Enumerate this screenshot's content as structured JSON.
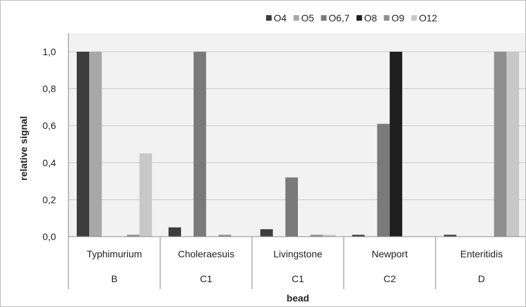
{
  "chart_data": {
    "type": "bar",
    "title": "",
    "xlabel": "bead",
    "ylabel": "relative signal",
    "ylim": [
      0,
      1.0
    ],
    "yticks": [
      "0,0",
      "0,2",
      "0,4",
      "0,6",
      "0,8",
      "1,0"
    ],
    "ytick_values": [
      0,
      0.2,
      0.4,
      0.6,
      0.8,
      1.0
    ],
    "categories": [
      "Typhimurium",
      "Choleraesuis",
      "Livingstone",
      "Newport",
      "Enteritidis"
    ],
    "groups": [
      "B",
      "C1",
      "C1",
      "C2",
      "D"
    ],
    "legend_position": "top-right",
    "grid": true,
    "series": [
      {
        "name": "O4",
        "color": "#3d3d3d",
        "values": [
          1.0,
          0.05,
          0.04,
          0.01,
          0.01
        ]
      },
      {
        "name": "O5",
        "color": "#a8a8a8",
        "values": [
          1.0,
          0.0,
          0.0,
          0.0,
          0.0
        ]
      },
      {
        "name": "O6,7",
        "color": "#7a7a7a",
        "values": [
          0.0,
          1.0,
          0.32,
          0.61,
          0.0
        ]
      },
      {
        "name": "O8",
        "color": "#1f1f1f",
        "values": [
          0.0,
          0.0,
          0.0,
          1.0,
          0.0
        ]
      },
      {
        "name": "O9",
        "color": "#8f8f8f",
        "values": [
          0.01,
          0.01,
          0.01,
          0.0,
          1.0
        ]
      },
      {
        "name": "O12",
        "color": "#c8c8c8",
        "values": [
          0.45,
          0.0,
          0.01,
          0.0,
          1.0
        ]
      }
    ]
  }
}
